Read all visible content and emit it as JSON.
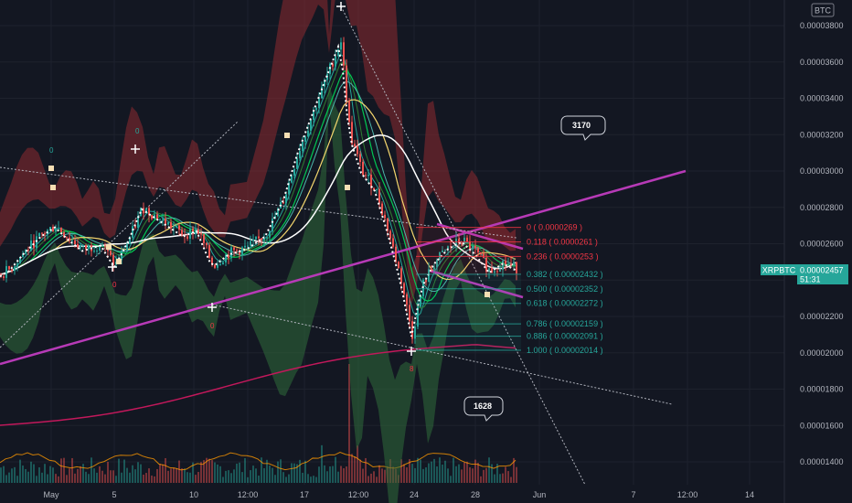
{
  "chart_data": {
    "type": "candlestick",
    "symbol": "XRPBTC",
    "price_unit_badge": "BTC",
    "last_price": "0.00002457",
    "countdown": "51:31",
    "y_axis_ticks": [
      "0.00003800",
      "0.00003600",
      "0.00003400",
      "0.00003200",
      "0.00003000",
      "0.00002800",
      "0.00002600",
      "0.00002400",
      "0.00002200",
      "0.00002000",
      "0.00001800",
      "0.00001600",
      "0.00001400"
    ],
    "y_axis_values": [
      3.8e-05,
      3.6e-05,
      3.4e-05,
      3.2e-05,
      3e-05,
      2.8e-05,
      2.6e-05,
      2.4e-05,
      2.2e-05,
      2e-05,
      1.8e-05,
      1.6e-05,
      1.4e-05
    ],
    "x_axis_ticks": [
      "May",
      "5",
      "10",
      "12:00",
      "17",
      "12:00",
      "24",
      "28",
      "Jun",
      "7",
      "12:00",
      "14"
    ],
    "price_path": [
      {
        "i": 0,
        "v": 2.43e-05
      },
      {
        "i": 10,
        "v": 2.46e-05
      },
      {
        "i": 25,
        "v": 2.55e-05
      },
      {
        "i": 45,
        "v": 2.65e-05
      },
      {
        "i": 60,
        "v": 2.7e-05
      },
      {
        "i": 75,
        "v": 2.63e-05
      },
      {
        "i": 90,
        "v": 2.57e-05
      },
      {
        "i": 110,
        "v": 2.6e-05
      },
      {
        "i": 125,
        "v": 2.48e-05
      },
      {
        "i": 140,
        "v": 2.62e-05
      },
      {
        "i": 155,
        "v": 2.8e-05
      },
      {
        "i": 170,
        "v": 2.75e-05
      },
      {
        "i": 185,
        "v": 2.7e-05
      },
      {
        "i": 200,
        "v": 2.65e-05
      },
      {
        "i": 215,
        "v": 2.68e-05
      },
      {
        "i": 232,
        "v": 2.48e-05
      },
      {
        "i": 250,
        "v": 2.55e-05
      },
      {
        "i": 270,
        "v": 2.58e-05
      },
      {
        "i": 290,
        "v": 2.65e-05
      },
      {
        "i": 310,
        "v": 2.85e-05
      },
      {
        "i": 325,
        "v": 3.1e-05
      },
      {
        "i": 340,
        "v": 3.3e-05
      },
      {
        "i": 355,
        "v": 3.5e-05
      },
      {
        "i": 372,
        "v": 3.72e-05
      },
      {
        "i": 382,
        "v": 3.2e-05
      },
      {
        "i": 395,
        "v": 3e-05
      },
      {
        "i": 410,
        "v": 2.9e-05
      },
      {
        "i": 425,
        "v": 2.65e-05
      },
      {
        "i": 438,
        "v": 2.4e-05
      },
      {
        "i": 450,
        "v": 2.1e-05
      },
      {
        "i": 462,
        "v": 2.38e-05
      },
      {
        "i": 475,
        "v": 2.5e-05
      },
      {
        "i": 490,
        "v": 2.58e-05
      },
      {
        "i": 505,
        "v": 2.62e-05
      },
      {
        "i": 520,
        "v": 2.55e-05
      },
      {
        "i": 535,
        "v": 2.45e-05
      },
      {
        "i": 550,
        "v": 2.5e-05
      },
      {
        "i": 566,
        "v": 2.46e-05
      }
    ],
    "fibonacci": [
      {
        "ratio": "0",
        "label": "0 ( 0.0000269 )",
        "value": 2.69e-05,
        "color": "#f23645"
      },
      {
        "ratio": "0.118",
        "label": "0.118 ( 0.0000261 )",
        "value": 2.61e-05,
        "color": "#f23645"
      },
      {
        "ratio": "0.236",
        "label": "0.236 ( 0.0000253 )",
        "value": 2.53e-05,
        "color": "#f23645"
      },
      {
        "ratio": "0.382",
        "label": "0.382 ( 0.00002432 )",
        "value": 2.432e-05,
        "color": "#26a69a"
      },
      {
        "ratio": "0.500",
        "label": "0.500 ( 0.00002352 )",
        "value": 2.352e-05,
        "color": "#26a69a"
      },
      {
        "ratio": "0.618",
        "label": "0.618 ( 0.00002272 )",
        "value": 2.272e-05,
        "color": "#26a69a"
      },
      {
        "ratio": "0.786",
        "label": "0.786 ( 0.00002159 )",
        "value": 2.159e-05,
        "color": "#26a69a"
      },
      {
        "ratio": "0.886",
        "label": "0.886 ( 0.00002091 )",
        "value": 2.091e-05,
        "color": "#26a69a"
      },
      {
        "ratio": "1.000",
        "label": "1.000 ( 0.00002014 )",
        "value": 2.014e-05,
        "color": "#26a69a"
      }
    ],
    "callouts": [
      {
        "text": "3170"
      },
      {
        "text": "1628"
      }
    ],
    "markers": [
      {
        "text": "0",
        "color": "#26a69a"
      },
      {
        "text": "0",
        "color": "#26a69a"
      },
      {
        "text": "0",
        "color": "#f23645"
      },
      {
        "text": "0",
        "color": "#f23645"
      },
      {
        "text": "8",
        "color": "#f23645"
      }
    ],
    "colors": {
      "background": "#131722",
      "up": "#26a69a",
      "down": "#ef5350",
      "trendline": "#b73ab7",
      "price_label_bg": "#26a69a"
    }
  }
}
